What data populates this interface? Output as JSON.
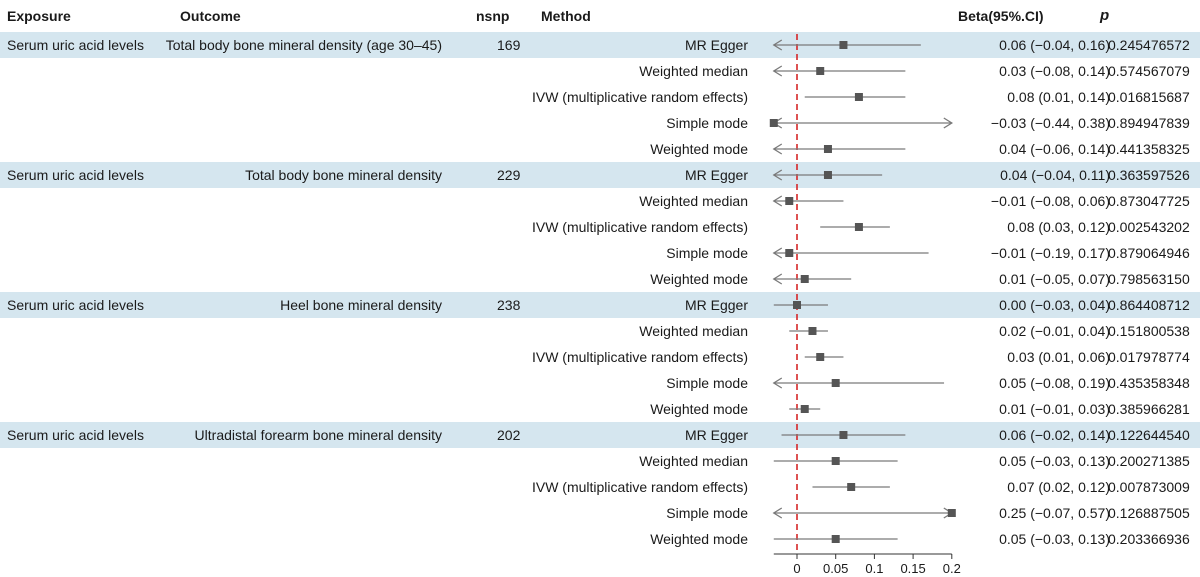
{
  "headers": {
    "exposure": "Exposure",
    "outcome": "Outcome",
    "nsnp": "nsnp",
    "method": "Method",
    "beta": "Beta(95%.CI)",
    "p": "p"
  },
  "colors": {
    "band": "#d5e6ef",
    "marker": "#555555",
    "ci_line": "#7a7a7a",
    "ref_line": "#d62728"
  },
  "chart_data": {
    "type": "forest",
    "xlabel": "",
    "xlim": [
      -0.03,
      0.2
    ],
    "xticks": [
      0,
      0.05,
      0.1,
      0.15,
      0.2
    ],
    "xtick_labels": [
      "0",
      "0.05",
      "0.1",
      "0.15",
      "0.2"
    ],
    "reference_line": 0,
    "rows": [
      {
        "exposure": "Serum uric acid levels",
        "outcome": "Total body bone mineral density (age 30–45)",
        "nsnp": "169",
        "method": "MR Egger",
        "beta": 0.06,
        "lo": -0.04,
        "hi": 0.16,
        "beta_ci": "0.06 (−0.04, 0.16)",
        "p": "0.245476572"
      },
      {
        "exposure": "",
        "outcome": "",
        "nsnp": "",
        "method": "Weighted median",
        "beta": 0.03,
        "lo": -0.08,
        "hi": 0.14,
        "beta_ci": "0.03 (−0.08, 0.14)",
        "p": "0.574567079"
      },
      {
        "exposure": "",
        "outcome": "",
        "nsnp": "",
        "method": "IVW (multiplicative random effects)",
        "beta": 0.08,
        "lo": 0.01,
        "hi": 0.14,
        "beta_ci": "0.08 (0.01, 0.14)",
        "p": "0.016815687"
      },
      {
        "exposure": "",
        "outcome": "",
        "nsnp": "",
        "method": "Simple mode",
        "beta": -0.03,
        "lo": -0.44,
        "hi": 0.38,
        "beta_ci": "−0.03 (−0.44, 0.38)",
        "p": "0.894947839"
      },
      {
        "exposure": "",
        "outcome": "",
        "nsnp": "",
        "method": "Weighted mode",
        "beta": 0.04,
        "lo": -0.06,
        "hi": 0.14,
        "beta_ci": "0.04 (−0.06, 0.14)",
        "p": "0.441358325"
      },
      {
        "exposure": "Serum uric acid levels",
        "outcome": "Total body bone mineral density",
        "nsnp": "229",
        "method": "MR Egger",
        "beta": 0.04,
        "lo": -0.04,
        "hi": 0.11,
        "beta_ci": "0.04 (−0.04, 0.11)",
        "p": "0.363597526"
      },
      {
        "exposure": "",
        "outcome": "",
        "nsnp": "",
        "method": "Weighted median",
        "beta": -0.01,
        "lo": -0.08,
        "hi": 0.06,
        "beta_ci": "−0.01 (−0.08, 0.06)",
        "p": "0.873047725"
      },
      {
        "exposure": "",
        "outcome": "",
        "nsnp": "",
        "method": "IVW (multiplicative random effects)",
        "beta": 0.08,
        "lo": 0.03,
        "hi": 0.12,
        "beta_ci": "0.08 (0.03, 0.12)",
        "p": "0.002543202"
      },
      {
        "exposure": "",
        "outcome": "",
        "nsnp": "",
        "method": "Simple mode",
        "beta": -0.01,
        "lo": -0.19,
        "hi": 0.17,
        "beta_ci": "−0.01 (−0.19, 0.17)",
        "p": "0.879064946"
      },
      {
        "exposure": "",
        "outcome": "",
        "nsnp": "",
        "method": "Weighted mode",
        "beta": 0.01,
        "lo": -0.05,
        "hi": 0.07,
        "beta_ci": "0.01 (−0.05, 0.07)",
        "p": "0.798563150"
      },
      {
        "exposure": "Serum uric acid levels",
        "outcome": "Heel bone mineral density",
        "nsnp": "238",
        "method": "MR Egger",
        "beta": 0.0,
        "lo": -0.03,
        "hi": 0.04,
        "beta_ci": "0.00 (−0.03, 0.04)",
        "p": "0.864408712"
      },
      {
        "exposure": "",
        "outcome": "",
        "nsnp": "",
        "method": "Weighted median",
        "beta": 0.02,
        "lo": -0.01,
        "hi": 0.04,
        "beta_ci": "0.02 (−0.01, 0.04)",
        "p": "0.151800538"
      },
      {
        "exposure": "",
        "outcome": "",
        "nsnp": "",
        "method": "IVW (multiplicative random effects)",
        "beta": 0.03,
        "lo": 0.01,
        "hi": 0.06,
        "beta_ci": "0.03 (0.01, 0.06)",
        "p": "0.017978774"
      },
      {
        "exposure": "",
        "outcome": "",
        "nsnp": "",
        "method": "Simple mode",
        "beta": 0.05,
        "lo": -0.08,
        "hi": 0.19,
        "beta_ci": "0.05 (−0.08, 0.19)",
        "p": "0.435358348"
      },
      {
        "exposure": "",
        "outcome": "",
        "nsnp": "",
        "method": "Weighted mode",
        "beta": 0.01,
        "lo": -0.01,
        "hi": 0.03,
        "beta_ci": "0.01 (−0.01, 0.03)",
        "p": "0.385966281"
      },
      {
        "exposure": "Serum uric acid levels",
        "outcome": "Ultradistal forearm bone mineral density",
        "nsnp": "202",
        "method": "MR Egger",
        "beta": 0.06,
        "lo": -0.02,
        "hi": 0.14,
        "beta_ci": "0.06 (−0.02, 0.14)",
        "p": "0.122644540"
      },
      {
        "exposure": "",
        "outcome": "",
        "nsnp": "",
        "method": "Weighted median",
        "beta": 0.05,
        "lo": -0.03,
        "hi": 0.13,
        "beta_ci": "0.05 (−0.03, 0.13)",
        "p": "0.200271385"
      },
      {
        "exposure": "",
        "outcome": "",
        "nsnp": "",
        "method": "IVW (multiplicative random effects)",
        "beta": 0.07,
        "lo": 0.02,
        "hi": 0.12,
        "beta_ci": "0.07 (0.02, 0.12)",
        "p": "0.007873009"
      },
      {
        "exposure": "",
        "outcome": "",
        "nsnp": "",
        "method": "Simple mode",
        "beta": 0.25,
        "lo": -0.07,
        "hi": 0.57,
        "beta_ci": "0.25 (−0.07, 0.57)",
        "p": "0.126887505"
      },
      {
        "exposure": "",
        "outcome": "",
        "nsnp": "",
        "method": "Weighted mode",
        "beta": 0.05,
        "lo": -0.03,
        "hi": 0.13,
        "beta_ci": "0.05 (−0.03, 0.13)",
        "p": "0.203366936"
      }
    ]
  }
}
